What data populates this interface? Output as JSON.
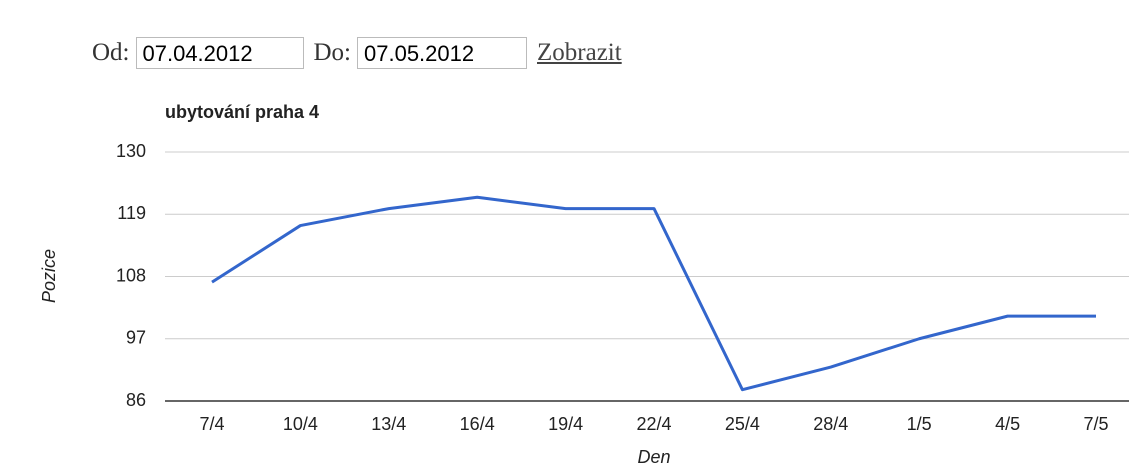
{
  "form": {
    "from_label": "Od:",
    "from_value": "07.04.2012",
    "to_label": "Do:",
    "to_value": "07.05.2012",
    "submit": "Zobrazit"
  },
  "chart_data": {
    "type": "line",
    "title": "ubytování praha 4",
    "x_label": "Den",
    "y_label": "Pozice",
    "categories": [
      "7/4",
      "10/4",
      "13/4",
      "16/4",
      "19/4",
      "22/4",
      "25/4",
      "28/4",
      "1/5",
      "4/5",
      "7/5"
    ],
    "values": [
      107,
      117,
      120,
      122,
      120,
      120,
      88,
      92,
      97,
      101,
      101
    ],
    "color": "#3366cc",
    "ylim": [
      86,
      130
    ],
    "yticks": [
      86,
      97,
      108,
      119,
      130
    ],
    "grid": true
  }
}
